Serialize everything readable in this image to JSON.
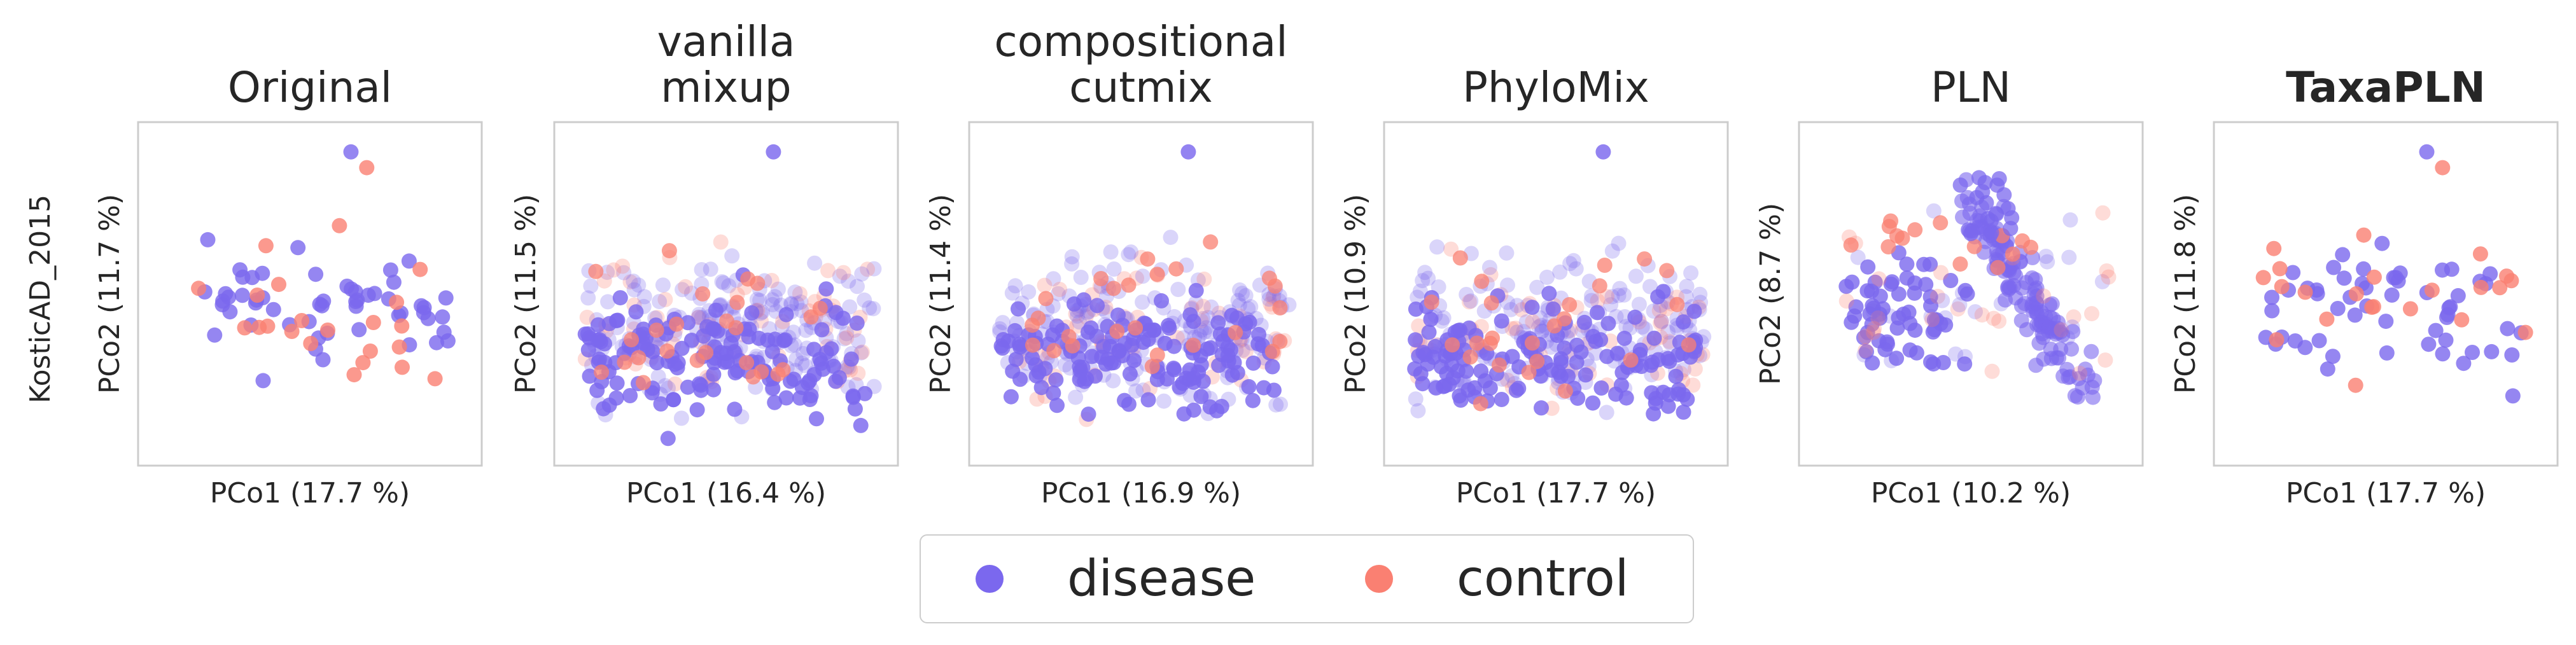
{
  "row_label": "KosticAD_2015",
  "legend": [
    {
      "label": "disease",
      "color": "#7b68ee"
    },
    {
      "label": "control",
      "color": "#fa8072"
    }
  ],
  "chart_data": [
    {
      "type": "scatter",
      "title": [
        "Original"
      ],
      "title_bold": false,
      "xlabel": "PCo1 (17.7 %)",
      "ylabel": "PCo2 (11.7 %)",
      "grid": false,
      "style": "solid",
      "seed": 11
    },
    {
      "type": "scatter",
      "title": [
        "vanilla",
        "mixup"
      ],
      "title_bold": false,
      "xlabel": "PCo1 (16.4 %)",
      "ylabel": "PCo2 (11.5 %)",
      "grid": false,
      "style": "mixed",
      "seed": 23
    },
    {
      "type": "scatter",
      "title": [
        "compositional",
        "cutmix"
      ],
      "title_bold": false,
      "xlabel": "PCo1 (16.9 %)",
      "ylabel": "PCo2 (11.4 %)",
      "grid": false,
      "style": "mixed",
      "seed": 37
    },
    {
      "type": "scatter",
      "title": [
        "PhyloMix"
      ],
      "title_bold": false,
      "xlabel": "PCo1 (17.7 %)",
      "ylabel": "PCo2 (10.9 %)",
      "grid": false,
      "style": "mixed",
      "seed": 41
    },
    {
      "type": "scatter",
      "title": [
        "PLN"
      ],
      "title_bold": false,
      "xlabel": "PCo1 (10.2 %)",
      "ylabel": "PCo2 (8.7 %)",
      "grid": false,
      "style": "pln",
      "seed": 53
    },
    {
      "type": "scatter",
      "title": [
        "TaxaPLN"
      ],
      "title_bold": true,
      "xlabel": "PCo1 (17.7 %)",
      "ylabel": "PCo2 (11.8 %)",
      "grid": false,
      "style": "solid",
      "seed": 67
    }
  ]
}
